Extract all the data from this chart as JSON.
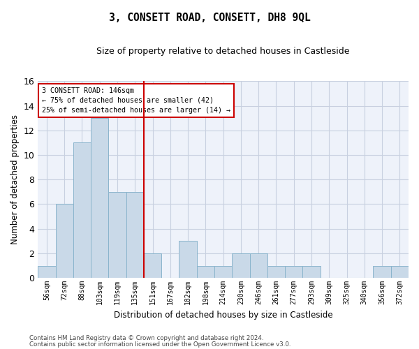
{
  "title": "3, CONSETT ROAD, CONSETT, DH8 9QL",
  "subtitle": "Size of property relative to detached houses in Castleside",
  "xlabel": "Distribution of detached houses by size in Castleside",
  "ylabel": "Number of detached properties",
  "categories": [
    "56sqm",
    "72sqm",
    "88sqm",
    "103sqm",
    "119sqm",
    "135sqm",
    "151sqm",
    "167sqm",
    "182sqm",
    "198sqm",
    "214sqm",
    "230sqm",
    "246sqm",
    "261sqm",
    "277sqm",
    "293sqm",
    "309sqm",
    "325sqm",
    "340sqm",
    "356sqm",
    "372sqm"
  ],
  "values": [
    1,
    6,
    11,
    13,
    7,
    7,
    2,
    0,
    3,
    1,
    1,
    2,
    2,
    1,
    1,
    1,
    0,
    0,
    0,
    1,
    1
  ],
  "bar_color": "#c9d9e8",
  "bar_edge_color": "#8ab4cc",
  "vline_x_index": 6,
  "vline_color": "#cc0000",
  "annotation_line1": "3 CONSETT ROAD: 146sqm",
  "annotation_line2": "← 75% of detached houses are smaller (42)",
  "annotation_line3": "25% of semi-detached houses are larger (14) →",
  "annotation_box_color": "#cc0000",
  "ylim": [
    0,
    16
  ],
  "yticks": [
    0,
    2,
    4,
    6,
    8,
    10,
    12,
    14,
    16
  ],
  "grid_color": "#c8d0e0",
  "bg_color": "#eef2fa",
  "footer1": "Contains HM Land Registry data © Crown copyright and database right 2024.",
  "footer2": "Contains public sector information licensed under the Open Government Licence v3.0."
}
